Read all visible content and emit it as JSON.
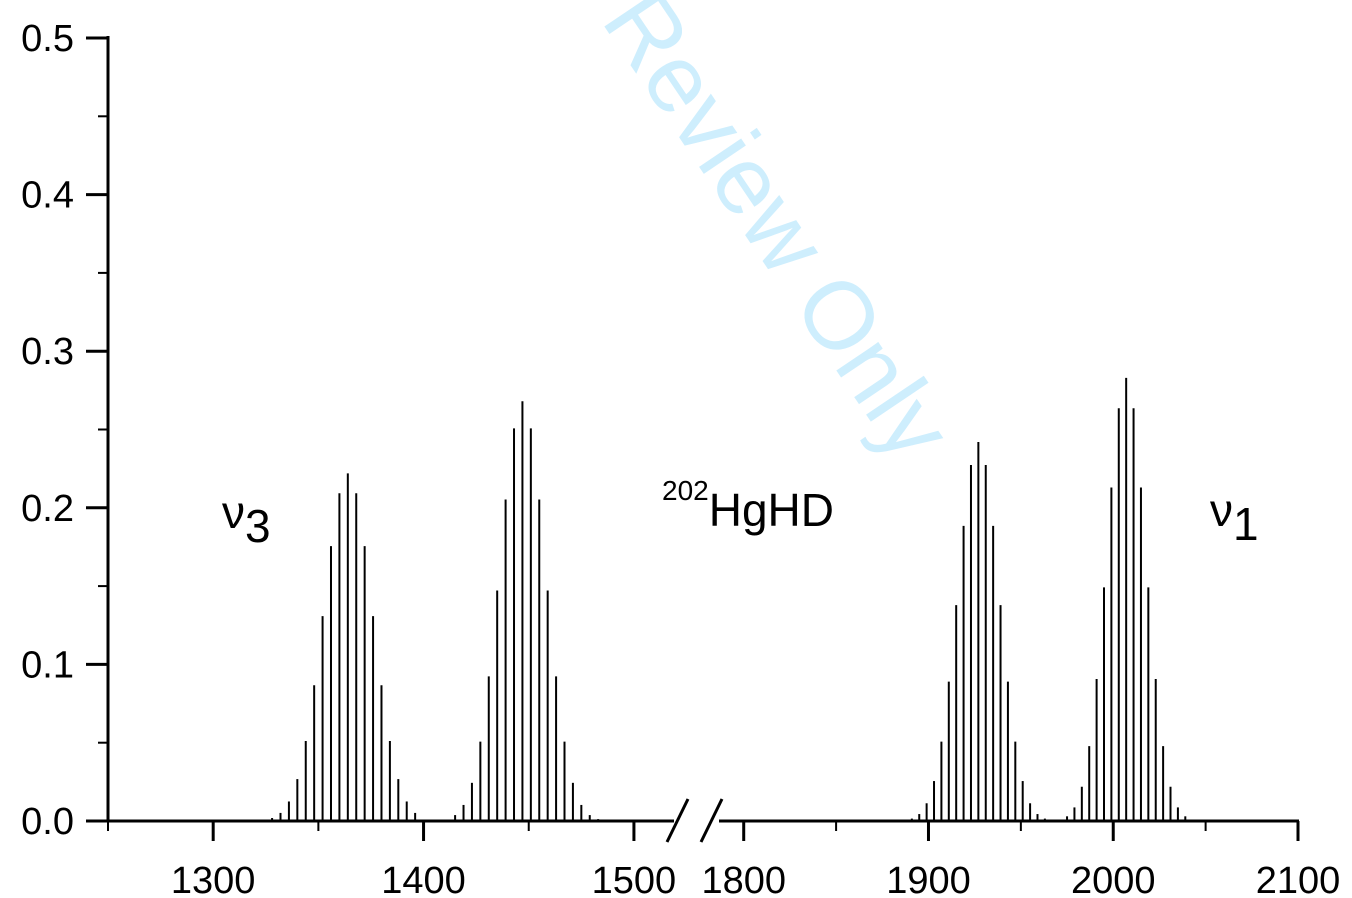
{
  "chart_data": {
    "type": "bar",
    "title": "",
    "xlabel": "",
    "ylabel": "",
    "ylim": [
      0,
      0.5
    ],
    "y_ticks": [
      "0.0",
      "0.1",
      "0.2",
      "0.3",
      "0.4",
      "0.5"
    ],
    "grid": false,
    "legend": "none",
    "axis_break": {
      "from": 1520,
      "to": 1785
    },
    "x_segments": [
      {
        "xlim": [
          1250,
          1520
        ],
        "ticks": [
          "1300",
          "1400",
          "1500"
        ]
      },
      {
        "xlim": [
          1785,
          2100
        ],
        "ticks": [
          "1800",
          "1900",
          "2000",
          "2100"
        ]
      }
    ],
    "annotations": {
      "nu3": {
        "base": "ν",
        "sub": "3"
      },
      "nu1": {
        "base": "ν",
        "sub": "1"
      },
      "species": {
        "sup": "202",
        "base": "HgHD"
      }
    },
    "watermark": "Review Only",
    "series": [
      {
        "center": 1364,
        "spacing": 4,
        "peak": 0.222,
        "width": 16.5,
        "skip": [
          1400
        ]
      },
      {
        "center": 1447,
        "spacing": 4,
        "peak": 0.268,
        "width": 15.5,
        "skip": [
          1405,
          1410
        ]
      },
      {
        "center": 1927,
        "spacing": 4,
        "peak": 0.242,
        "width": 16,
        "skip": [
          1965
        ]
      },
      {
        "center": 2007,
        "spacing": 4,
        "peak": 0.283,
        "width": 15,
        "skip": [
          1970
        ]
      }
    ]
  }
}
